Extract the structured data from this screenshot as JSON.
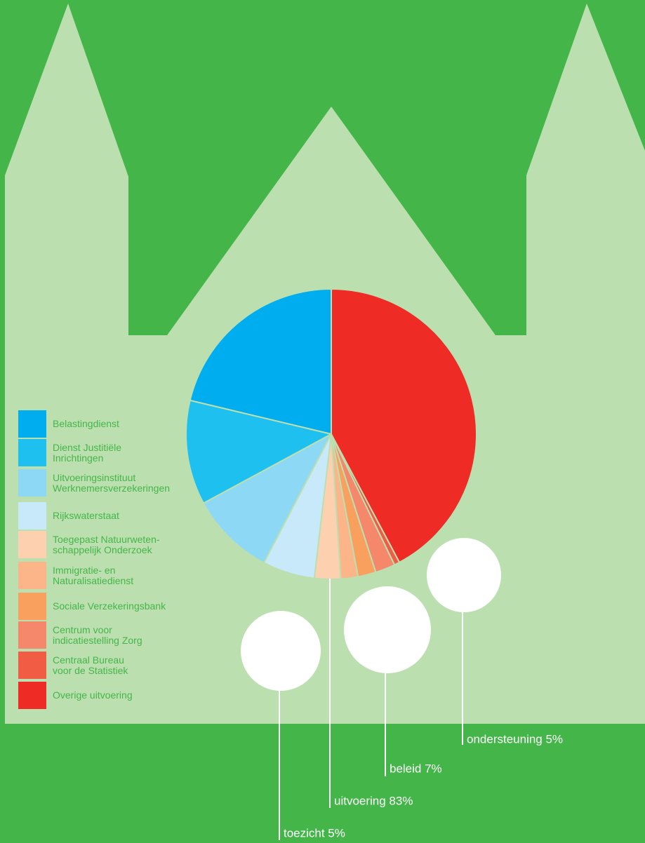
{
  "chart_data": {
    "type": "pie",
    "categories": [
      "Belastingdienst",
      "Dienst Justitiële\nInrichtingen",
      "Uitvoeringsinstituut\nWerknemersverzekeringen",
      "Rijkswaterstaat",
      "Toegepast Natuurweten-\nschappelijk Onderzoek",
      "Immigratie- en\nNaturalisatiedienst",
      "Sociale Verzekeringsbank",
      "Centrum  voor\nindicatiestelling Zorg",
      "Centraal Bureau\nvoor de Statistiek",
      "Overige uitvoering"
    ],
    "values": [
      21.2,
      11.6,
      9.4,
      5.8,
      2.9,
      1.9,
      2.0,
      2.2,
      0.6,
      42.1
    ],
    "colors": [
      "#00aeef",
      "#1ec0f0",
      "#8dd8f5",
      "#c8e9f9",
      "#fdd0b0",
      "#fbb589",
      "#f9a05e",
      "#f5876a",
      "#f15d44",
      "#ee2b24"
    ],
    "annotations": [
      "toezicht 5%",
      "uitvoering  83%",
      "beleid 7%",
      "ondersteuning 5%"
    ]
  }
}
